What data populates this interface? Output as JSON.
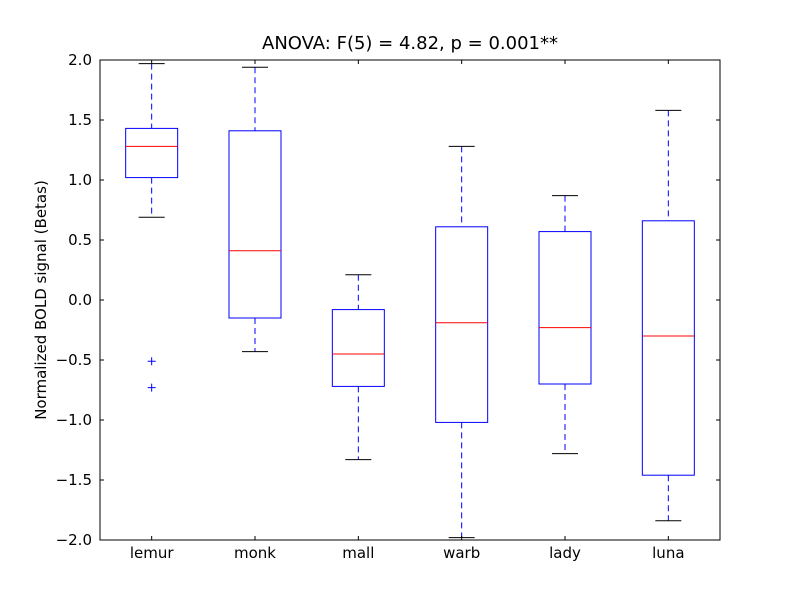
{
  "chart_data": {
    "type": "box",
    "title": "ANOVA: F(5) = 4.82, p = 0.001**",
    "xlabel": "",
    "ylabel": "Normalized BOLD signal (Betas)",
    "ylim": [
      -2.0,
      2.0
    ],
    "yticks": [
      "2.0",
      "1.5",
      "1.0",
      "0.5",
      "0.0",
      "−0.5",
      "−1.0",
      "−1.5",
      "−2.0"
    ],
    "ytick_values": [
      2.0,
      1.5,
      1.0,
      0.5,
      0.0,
      -0.5,
      -1.0,
      -1.5,
      -2.0
    ],
    "grid": false,
    "colors": {
      "box": "#0000ff",
      "median": "#ff0000",
      "whisker": "#0000ff",
      "cap": "#000000",
      "outlier": "#0000ff"
    },
    "categories": [
      "lemur",
      "monk",
      "mall",
      "warb",
      "lady",
      "luna"
    ],
    "boxes": [
      {
        "whisker_high": 1.97,
        "q3": 1.43,
        "median": 1.28,
        "q1": 1.02,
        "whisker_low": 0.69,
        "outliers": [
          -0.51,
          -0.73
        ]
      },
      {
        "whisker_high": 1.94,
        "q3": 1.41,
        "median": 0.41,
        "q1": -0.15,
        "whisker_low": -0.43,
        "outliers": []
      },
      {
        "whisker_high": 0.21,
        "q3": -0.08,
        "median": -0.45,
        "q1": -0.72,
        "whisker_low": -1.33,
        "outliers": []
      },
      {
        "whisker_high": 1.28,
        "q3": 0.61,
        "median": -0.19,
        "q1": -1.02,
        "whisker_low": -1.98,
        "outliers": []
      },
      {
        "whisker_high": 0.87,
        "q3": 0.57,
        "median": -0.23,
        "q1": -0.7,
        "whisker_low": -1.28,
        "outliers": []
      },
      {
        "whisker_high": 1.58,
        "q3": 0.66,
        "median": -0.3,
        "q1": -1.46,
        "whisker_low": -1.84,
        "outliers": []
      }
    ]
  }
}
